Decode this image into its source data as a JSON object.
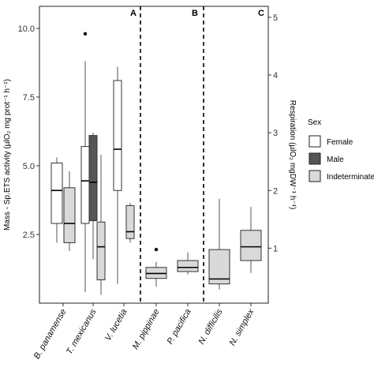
{
  "chart_data": {
    "type": "box",
    "ylabel": "Mass - Sp.ETS activity (µlO₂ mg prot⁻¹ h⁻¹)",
    "ylabel_right": "Respiration (µlO₂ mgDW⁻¹ h⁻¹)",
    "ylim": [
      0,
      10.8
    ],
    "y_ticks": [
      "2.5",
      "5.0",
      "7.5",
      "10.0"
    ],
    "y_ticks_right": [
      "1",
      "2",
      "3",
      "4",
      "5"
    ],
    "categories": [
      "B. panamense",
      "T. mexicanus",
      "V. lucetia",
      "M. pippinae",
      "P. pacifica",
      "N. difficilis",
      "N. simplex"
    ],
    "panels": [
      "A",
      "B",
      "C"
    ],
    "legend": {
      "title": "Sex",
      "position": "right",
      "entries": [
        {
          "label": "Female",
          "color": "#ffffff"
        },
        {
          "label": "Male",
          "color": "#555555"
        },
        {
          "label": "Indeterminate",
          "color": "#d9d9d9"
        }
      ]
    },
    "series": [
      {
        "name": "Female",
        "color": "#ffffff",
        "boxes": [
          {
            "category": "B. panamense",
            "min": 2.2,
            "q1": 2.9,
            "median": 4.1,
            "q3": 5.1,
            "max": 5.3
          },
          {
            "category": "T. mexicanus",
            "min": 0.4,
            "q1": 2.9,
            "median": 4.45,
            "q3": 5.7,
            "max": 8.8,
            "outliers": [
              9.8
            ]
          },
          {
            "category": "V. lucetia",
            "min": 0.7,
            "q1": 4.1,
            "median": 5.6,
            "q3": 8.1,
            "max": 8.6
          }
        ]
      },
      {
        "name": "Male",
        "color": "#555555",
        "boxes": [
          {
            "category": "T. mexicanus",
            "min": 1.6,
            "q1": 3.0,
            "median": 4.4,
            "q3": 6.1,
            "max": 6.2
          }
        ]
      },
      {
        "name": "Indeterminate",
        "color": "#d9d9d9",
        "boxes": [
          {
            "category": "B. panamense",
            "min": 1.9,
            "q1": 2.2,
            "median": 2.9,
            "q3": 4.2,
            "max": 4.8
          },
          {
            "category": "T. mexicanus",
            "min": 0.3,
            "q1": 0.85,
            "median": 2.05,
            "q3": 2.95,
            "max": 5.4
          },
          {
            "category": "V. lucetia",
            "min": 2.2,
            "q1": 2.35,
            "median": 2.6,
            "q3": 3.55,
            "max": 3.65
          },
          {
            "category": "M. pippinae",
            "min": 0.6,
            "q1": 0.9,
            "median": 1.08,
            "q3": 1.3,
            "max": 1.5,
            "outliers": [
              1.95
            ]
          },
          {
            "category": "P. pacifica",
            "min": 1.05,
            "q1": 1.15,
            "median": 1.3,
            "q3": 1.55,
            "max": 1.85
          },
          {
            "category": "N. difficilis",
            "min": 0.5,
            "q1": 0.7,
            "median": 0.88,
            "q3": 1.95,
            "max": 3.8
          },
          {
            "category": "N. simplex",
            "min": 1.1,
            "q1": 1.55,
            "median": 2.05,
            "q3": 2.65,
            "max": 3.5
          }
        ]
      }
    ]
  }
}
